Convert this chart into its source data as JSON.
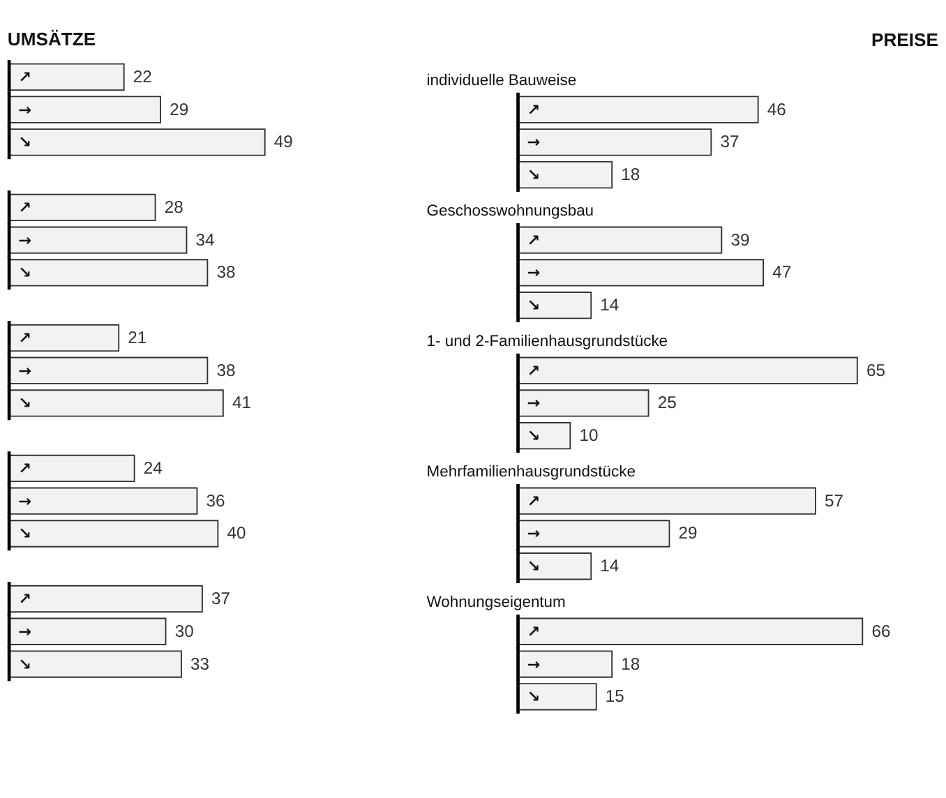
{
  "chart_data": [
    {
      "type": "bar",
      "orientation": "horizontal",
      "title": "UMSÄTZE",
      "color": "#f2f2f2",
      "data_labels": true,
      "tick_labels": false,
      "categories": [
        "↗",
        "→",
        "↘",
        null,
        "↗",
        "→",
        "↘",
        null,
        "↗",
        "→",
        "↘",
        null,
        "↗",
        "→",
        "↘",
        null,
        "↗",
        "→",
        "↘"
      ],
      "values": [
        22,
        29,
        49,
        null,
        28,
        34,
        38,
        null,
        21,
        38,
        41,
        null,
        24,
        36,
        40,
        null,
        37,
        30,
        33
      ]
    },
    {
      "type": "bar",
      "orientation": "horizontal",
      "title": "PREISE",
      "color": "#f2f2f2",
      "data_labels": true,
      "tick_labels": false,
      "categories": [
        null,
        "↗",
        "→",
        "↘",
        null,
        "↗",
        "→",
        "↘",
        null,
        "↗",
        "→",
        "↘",
        null,
        "↗",
        "→",
        "↘",
        null,
        "↗",
        "→",
        "↘"
      ],
      "values": [
        null,
        46,
        37,
        18,
        null,
        39,
        47,
        14,
        null,
        65,
        25,
        10,
        null,
        57,
        29,
        14,
        null,
        66,
        18,
        15
      ],
      "annotations": [
        "individuelle Bauweise",
        "Geschosswohnungsbau",
        "1- und 2-Familienhausgrundstücke",
        "Mehrfamilienhausgrundstücke",
        "Wohnungseigentum"
      ]
    }
  ]
}
